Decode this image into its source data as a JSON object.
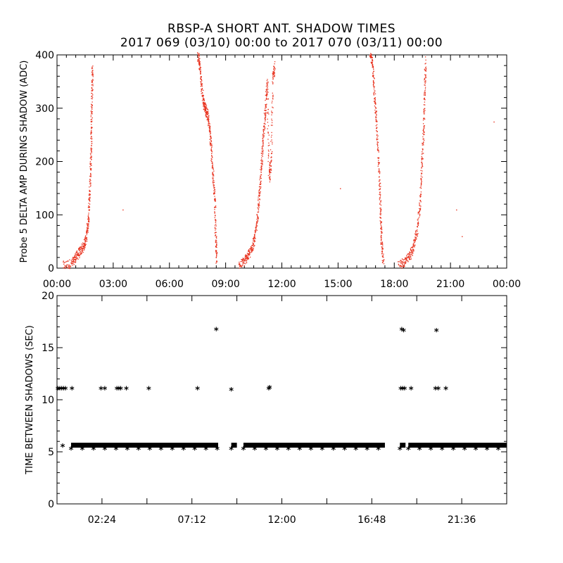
{
  "title_line1": "RBSP-A SHORT ANT. SHADOW TIMES",
  "title_line2": "2017 069 (03/10) 00:00 to 2017 070 (03/11) 00:00",
  "chart_data": [
    {
      "type": "scatter",
      "ylabel": "Probe 5 DELTA AMP DURING SHADOW (ADC)",
      "xlabel": "",
      "xlim_hours": [
        0,
        24
      ],
      "ylim": [
        0,
        400
      ],
      "x_ticks": [
        "00:00",
        "03:00",
        "06:00",
        "09:00",
        "12:00",
        "15:00",
        "18:00",
        "21:00",
        "00:00"
      ],
      "y_ticks": [
        "0",
        "100",
        "200",
        "300",
        "400"
      ],
      "color": "#e8321e",
      "series": [
        {
          "x_hours": [
            0.3,
            0.8,
            1.0,
            1.2,
            1.4,
            1.55,
            1.65,
            1.72,
            1.78,
            1.82,
            1.85,
            1.88
          ],
          "y": [
            5,
            10,
            22,
            32,
            40,
            60,
            90,
            140,
            200,
            260,
            330,
            380
          ]
        },
        {
          "x_hours": [
            7.5,
            7.6,
            7.7,
            7.8,
            7.9,
            8.0,
            8.1,
            8.2,
            8.3,
            8.4,
            8.45,
            8.5
          ],
          "y": [
            400,
            380,
            340,
            310,
            300,
            290,
            270,
            230,
            180,
            130,
            60,
            15
          ]
        },
        {
          "x_hours": [
            9.7,
            10.0,
            10.2,
            10.4,
            10.55,
            10.7,
            10.8,
            10.9,
            11.0,
            11.1,
            11.2,
            11.3,
            11.4,
            11.5,
            11.6
          ],
          "y": [
            5,
            15,
            25,
            40,
            60,
            100,
            150,
            200,
            250,
            300,
            350,
            170,
            200,
            360,
            380
          ]
        },
        {
          "x_hours": [
            16.7,
            16.8,
            16.9,
            17.0,
            17.1,
            17.2,
            17.25,
            17.3,
            17.4
          ],
          "y": [
            400,
            390,
            340,
            290,
            230,
            160,
            100,
            50,
            10
          ]
        },
        {
          "x_hours": [
            18.2,
            18.5,
            18.8,
            19.0,
            19.2,
            19.35,
            19.45,
            19.55,
            19.6,
            19.65
          ],
          "y": [
            5,
            12,
            22,
            40,
            70,
            120,
            190,
            260,
            330,
            390
          ]
        },
        {
          "x_hours": [
            3.5,
            15.1,
            21.3,
            21.6,
            23.3
          ],
          "y": [
            110,
            150,
            110,
            60,
            275
          ]
        }
      ]
    },
    {
      "type": "scatter",
      "ylabel": "TIME BETWEEN SHADOWS (SEC)",
      "xlabel": "",
      "xlim_hours": [
        0,
        24
      ],
      "ylim": [
        0,
        20
      ],
      "x_ticks": [
        "02:24",
        "07:12",
        "12:00",
        "16:48",
        "21:36"
      ],
      "y_ticks": [
        "0",
        "5",
        "10",
        "15",
        "20"
      ],
      "marker": "*",
      "color": "#000000",
      "bands": [
        {
          "x_start_hours": 0.75,
          "x_end_hours": 8.6,
          "y": 5.6
        },
        {
          "x_start_hours": 9.3,
          "x_end_hours": 9.6,
          "y": 5.6
        },
        {
          "x_start_hours": 9.95,
          "x_end_hours": 17.5,
          "y": 5.6
        },
        {
          "x_start_hours": 18.3,
          "x_end_hours": 18.6,
          "y": 5.6
        },
        {
          "x_start_hours": 18.75,
          "x_end_hours": 24.0,
          "y": 5.6
        }
      ],
      "points": {
        "x_hours": [
          0.05,
          0.15,
          0.25,
          0.35,
          0.45,
          0.8,
          2.35,
          2.55,
          3.2,
          3.3,
          3.4,
          3.7,
          4.9,
          7.5,
          8.5,
          9.3,
          11.3,
          11.35,
          18.35,
          18.45,
          18.4,
          18.5,
          18.55,
          18.9,
          20.2,
          20.25,
          20.35,
          20.75,
          0.3
        ],
        "y": [
          11.1,
          11.1,
          11.1,
          11.1,
          11.1,
          11.1,
          11.1,
          11.1,
          11.1,
          11.1,
          11.1,
          11.1,
          11.1,
          11.1,
          16.8,
          11.0,
          11.1,
          11.2,
          11.1,
          11.1,
          16.8,
          16.7,
          11.1,
          11.1,
          11.1,
          16.7,
          11.1,
          11.1,
          5.6
        ]
      }
    }
  ]
}
